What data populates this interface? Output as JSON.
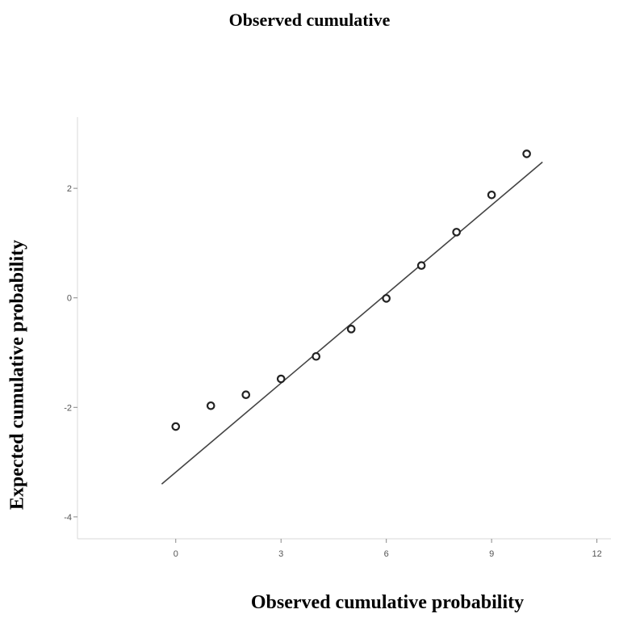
{
  "chart_data": {
    "type": "scatter",
    "title": "Observed cumulative",
    "xlabel": "Observed cumulative probability",
    "ylabel": "Expected cumulative probability",
    "xlim": [
      -2.8,
      12.4
    ],
    "ylim": [
      -4.4,
      3.3
    ],
    "xticks": [
      0,
      3,
      6,
      9,
      12
    ],
    "yticks": [
      2,
      0,
      -2,
      -4
    ],
    "xtick_labels": [
      "0",
      "3",
      "6",
      "9",
      "12"
    ],
    "ytick_labels": [
      "2",
      "0",
      "-2",
      "-4"
    ],
    "points": [
      {
        "x": 0,
        "y": -2.35
      },
      {
        "x": 1,
        "y": -1.97
      },
      {
        "x": 2,
        "y": -1.77
      },
      {
        "x": 3,
        "y": -1.48
      },
      {
        "x": 4,
        "y": -1.07
      },
      {
        "x": 5,
        "y": -0.57
      },
      {
        "x": 6,
        "y": -0.01
      },
      {
        "x": 7,
        "y": 0.59
      },
      {
        "x": 8,
        "y": 1.2
      },
      {
        "x": 9,
        "y": 1.88
      },
      {
        "x": 10,
        "y": 2.63
      }
    ],
    "reference_line": {
      "x1": -0.4,
      "y1": -3.4,
      "x2": 10.45,
      "y2": 2.48
    },
    "grid": false,
    "legend": "none"
  }
}
